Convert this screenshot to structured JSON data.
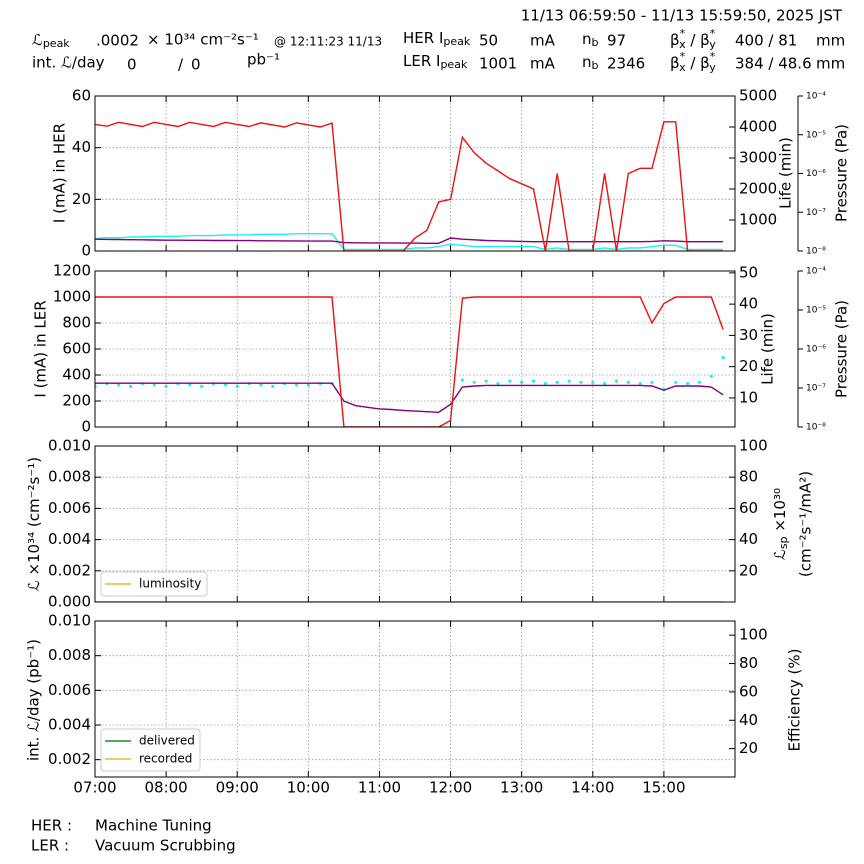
{
  "header": {
    "time_range": "11/13 06:59:50 - 11/13 15:59:50, 2025 JST",
    "lum_peak": {
      "label": [
        "ℒ",
        "peak"
      ],
      "value": ".0002",
      "unit": "× 10³⁴ cm⁻²s⁻¹",
      "time": "@ 12:11:23 11/13"
    },
    "int_lum": {
      "label": "int. ℒ/day",
      "delivered": "0",
      "sep": "/",
      "recorded": "0",
      "unit": "pb⁻¹"
    },
    "her": {
      "label": [
        "HER I",
        "peak"
      ],
      "current": "50",
      "unit": "mA",
      "nb_label": [
        "n",
        "b"
      ],
      "nb": "97",
      "beta_label": [
        "β",
        "*",
        "x",
        " / β",
        "*",
        "y"
      ],
      "beta": "400  / 81",
      "beta_unit": "mm"
    },
    "ler": {
      "label": [
        "LER I",
        "peak"
      ],
      "current": "1001",
      "unit": "mA",
      "nb_label": [
        "n",
        "b"
      ],
      "nb": "2346",
      "beta_label": [
        "β",
        "*",
        "x",
        " / β",
        "*",
        "y"
      ],
      "beta": "384 / 48.6",
      "beta_unit": "mm"
    }
  },
  "footer": {
    "her_label": "HER :",
    "her_mode": "Machine Tuning",
    "ler_label": "LER :",
    "ler_mode": "Vacuum Scrubbing"
  },
  "chart_data": [
    {
      "type": "line",
      "ylabel": "I (mA) in HER",
      "y2label": "Life (min)",
      "y3label": "Pressure (Pa)",
      "grid": true,
      "x": [
        "07:00",
        "07:10",
        "07:20",
        "07:30",
        "07:40",
        "07:50",
        "08:00",
        "08:10",
        "08:20",
        "08:30",
        "08:40",
        "08:50",
        "09:00",
        "09:10",
        "09:20",
        "09:30",
        "09:40",
        "09:50",
        "10:00",
        "10:10",
        "10:20",
        "10:30",
        "10:40",
        "10:50",
        "11:00",
        "11:10",
        "11:20",
        "11:30",
        "11:40",
        "11:50",
        "12:00",
        "12:10",
        "12:20",
        "12:30",
        "12:40",
        "12:50",
        "13:00",
        "13:10",
        "13:20",
        "13:30",
        "13:40",
        "13:50",
        "14:00",
        "14:10",
        "14:20",
        "14:30",
        "14:40",
        "14:50",
        "15:00",
        "15:10",
        "15:20",
        "15:30",
        "15:40",
        "15:50"
      ],
      "xlim": [
        "07:00",
        "16:00"
      ],
      "ylim": [
        0,
        60
      ],
      "yticks": [
        0,
        20,
        40,
        60
      ],
      "y2lim": [
        0,
        5000
      ],
      "y2ticks": [
        1000,
        2000,
        3000,
        4000,
        5000
      ],
      "y3lim": [
        1e-08,
        0.0001
      ],
      "y3log": true,
      "y3ticks": [
        {
          "value": 1e-08,
          "label": "10⁻⁸"
        },
        {
          "value": 1e-07,
          "label": "10⁻⁷"
        },
        {
          "value": 1e-06,
          "label": "10⁻⁶"
        },
        {
          "value": 1e-05,
          "label": "10⁻⁵"
        },
        {
          "value": 0.0001,
          "label": "10⁻⁴"
        }
      ],
      "series": [
        {
          "color": "#22eeee",
          "axis": "y3",
          "values": [
            2.1e-08,
            2.2e-08,
            2.2e-08,
            2.3e-08,
            2.3e-08,
            2.4e-08,
            2.4e-08,
            2.4e-08,
            2.5e-08,
            2.5e-08,
            2.5e-08,
            2.6e-08,
            2.6e-08,
            2.6e-08,
            2.7e-08,
            2.7e-08,
            2.7e-08,
            2.8e-08,
            2.8e-08,
            2.8e-08,
            2.8e-08,
            1.1e-08,
            1.1e-08,
            1.1e-08,
            1.1e-08,
            1.1e-08,
            1.1e-08,
            1.2e-08,
            1.2e-08,
            1.3e-08,
            1.5e-08,
            1.4e-08,
            1.3e-08,
            1.3e-08,
            1.3e-08,
            1.3e-08,
            1.3e-08,
            1.3e-08,
            1.1e-08,
            1.2e-08,
            1.1e-08,
            1.1e-08,
            1.1e-08,
            1.2e-08,
            1.1e-08,
            1.2e-08,
            1.2e-08,
            1.3e-08,
            1.4e-08,
            1.4e-08,
            1.1e-08,
            1.1e-08,
            1.1e-08,
            1.1e-08
          ]
        },
        {
          "color": "#800080",
          "axis": "y2",
          "values": [
            380,
            375,
            370,
            365,
            360,
            355,
            350,
            350,
            345,
            345,
            340,
            340,
            335,
            335,
            330,
            330,
            325,
            325,
            320,
            320,
            320,
            270,
            265,
            260,
            260,
            260,
            255,
            255,
            250,
            250,
            420,
            380,
            360,
            340,
            330,
            320,
            310,
            300,
            300,
            300,
            300,
            300,
            300,
            300,
            300,
            300,
            300,
            310,
            330,
            320,
            300,
            300,
            300,
            300
          ]
        },
        {
          "color": "#ee1111",
          "values": [
            49,
            48.3,
            49.8,
            49,
            48.2,
            49.8,
            49,
            48.2,
            49.8,
            49,
            48.2,
            49.8,
            49,
            48.2,
            49.6,
            48.8,
            48,
            49.6,
            48.8,
            48,
            49.5,
            0,
            0,
            0,
            0,
            0,
            0,
            5,
            8,
            19,
            20,
            44,
            38,
            34,
            31,
            28,
            26,
            24,
            0,
            30,
            0,
            0,
            0,
            30,
            0,
            30,
            32,
            32,
            50,
            50,
            0,
            0,
            0,
            0
          ]
        }
      ]
    },
    {
      "type": "line",
      "ylabel": "I (mA) in LER",
      "y2label": "Life (min)",
      "y3label": "Pressure (Pa)",
      "grid": true,
      "x": [
        "07:00",
        "07:10",
        "07:20",
        "07:30",
        "07:40",
        "07:50",
        "08:00",
        "08:10",
        "08:20",
        "08:30",
        "08:40",
        "08:50",
        "09:00",
        "09:10",
        "09:20",
        "09:30",
        "09:40",
        "09:50",
        "10:00",
        "10:10",
        "10:20",
        "10:30",
        "10:40",
        "10:50",
        "11:00",
        "11:10",
        "11:20",
        "11:30",
        "11:40",
        "11:50",
        "12:00",
        "12:10",
        "12:20",
        "12:30",
        "12:40",
        "12:50",
        "13:00",
        "13:10",
        "13:20",
        "13:30",
        "13:40",
        "13:50",
        "14:00",
        "14:10",
        "14:20",
        "14:30",
        "14:40",
        "14:50",
        "15:00",
        "15:10",
        "15:20",
        "15:30",
        "15:40",
        "15:50"
      ],
      "xlim": [
        "07:00",
        "16:00"
      ],
      "ylim": [
        0,
        1200
      ],
      "yticks": [
        0,
        200,
        400,
        600,
        800,
        1000,
        1200
      ],
      "y2lim": [
        0.7,
        50.6
      ],
      "y2ticks": [
        10,
        20,
        30,
        40,
        50
      ],
      "y3lim": [
        1e-08,
        0.0001
      ],
      "y3log": true,
      "y3ticks": [
        {
          "value": 1e-08,
          "label": "10⁻⁸"
        },
        {
          "value": 1e-07,
          "label": "10⁻⁷"
        },
        {
          "value": 1e-06,
          "label": "10⁻⁶"
        },
        {
          "value": 1e-05,
          "label": "10⁻⁵"
        },
        {
          "value": 0.0001,
          "label": "10⁻⁴"
        }
      ],
      "series": [
        {
          "color": "#22eeee",
          "axis": "y3",
          "style": "scatter",
          "values": [
            1.1e-07,
            1.3e-07,
            1.2e-07,
            1.1e-07,
            1.3e-07,
            1.2e-07,
            1.1e-07,
            1.3e-07,
            1.2e-07,
            1.1e-07,
            1.3e-07,
            1.2e-07,
            1.1e-07,
            1.3e-07,
            1.2e-07,
            1.1e-07,
            1.3e-07,
            1.2e-07,
            1.2e-07,
            1.3e-07,
            1.3e-07,
            null,
            null,
            null,
            null,
            null,
            null,
            null,
            null,
            null,
            null,
            1.6e-07,
            1.4e-07,
            1.5e-07,
            1.3e-07,
            1.5e-07,
            1.4e-07,
            1.5e-07,
            1.3e-07,
            1.4e-07,
            1.5e-07,
            1.4e-07,
            1.4e-07,
            1.3e-07,
            1.5e-07,
            1.4e-07,
            1.3e-07,
            1.4e-07,
            9e-08,
            1.4e-07,
            1.3e-07,
            1.4e-07,
            2e-07,
            6e-07
          ]
        },
        {
          "color": "#800080",
          "axis": "y2",
          "values": [
            14.7,
            14.7,
            14.7,
            14.7,
            14.7,
            14.7,
            14.7,
            14.7,
            14.7,
            14.7,
            14.7,
            14.7,
            14.7,
            14.7,
            14.7,
            14.7,
            14.7,
            14.7,
            14.7,
            14.7,
            14.7,
            9,
            7.5,
            7,
            6.5,
            6.3,
            6,
            5.8,
            5.6,
            5.4,
            8,
            13.5,
            13.8,
            14,
            14,
            14,
            14,
            14,
            14,
            14,
            14,
            14,
            14,
            14,
            14,
            14,
            14,
            13.8,
            12.5,
            13.8,
            13.8,
            13.8,
            13.5,
            11
          ]
        },
        {
          "color": "#ee1111",
          "values": [
            1000,
            1000,
            1000,
            1000,
            1000,
            1000,
            1000,
            1000,
            1000,
            1000,
            1000,
            1000,
            1000,
            1000,
            1000,
            1000,
            1000,
            1000,
            1000,
            1000,
            1000,
            0,
            0,
            0,
            0,
            0,
            0,
            0,
            0,
            0,
            50,
            990,
            1000,
            1000,
            1000,
            1000,
            1000,
            1000,
            1000,
            1000,
            1000,
            1000,
            1000,
            1000,
            1000,
            1000,
            1000,
            800,
            950,
            1000,
            1000,
            1000,
            1000,
            750
          ]
        }
      ]
    },
    {
      "type": "line",
      "ylabel": [
        "ℒ ×10³⁴ (cm⁻²s⁻¹)"
      ],
      "y2label": [
        "ℒ",
        "sp",
        " ×10³⁰"
      ],
      "y2label2": "(cm⁻²s⁻¹/mA²)",
      "grid": true,
      "legend": "lower left",
      "x": [
        "07:00",
        "07:10",
        "07:20",
        "07:30",
        "07:40",
        "07:50",
        "08:00",
        "08:10",
        "08:20",
        "08:30",
        "08:40",
        "08:50",
        "09:00",
        "09:10",
        "09:20",
        "09:30",
        "09:40",
        "09:50",
        "10:00",
        "10:10",
        "10:20",
        "10:30",
        "10:40",
        "10:50",
        "11:00",
        "11:10",
        "11:20",
        "11:30",
        "11:40",
        "11:50",
        "12:00",
        "12:10",
        "12:20",
        "12:30",
        "12:40",
        "12:50",
        "13:00",
        "13:10",
        "13:20",
        "13:30",
        "13:40",
        "13:50",
        "14:00",
        "14:10",
        "14:20",
        "14:30",
        "14:40",
        "14:50",
        "15:00",
        "15:10",
        "15:20",
        "15:30",
        "15:40",
        "15:50"
      ],
      "xlim": [
        "07:00",
        "16:00"
      ],
      "ylim": [
        0,
        0.01
      ],
      "yticks": [
        {
          "value": 0,
          "label": "0.000"
        },
        {
          "value": 0.002,
          "label": "0.002"
        },
        {
          "value": 0.004,
          "label": "0.004"
        },
        {
          "value": 0.006,
          "label": "0.006"
        },
        {
          "value": 0.008,
          "label": "0.008"
        },
        {
          "value": 0.01,
          "label": "0.010"
        }
      ],
      "y2lim": [
        0,
        100
      ],
      "y2ticks": [
        20,
        40,
        60,
        80,
        100
      ],
      "series": [
        {
          "name": "luminosity",
          "color": "#f5b335",
          "values": [
            0,
            0,
            0,
            0,
            0,
            0,
            0,
            0,
            0,
            0,
            0,
            0,
            0,
            0,
            0,
            0,
            0,
            0,
            0,
            0,
            0,
            0,
            0,
            0,
            0,
            0,
            0,
            0,
            0,
            0,
            0,
            0,
            0,
            0,
            0,
            0,
            0,
            0,
            0,
            0,
            0,
            0,
            0,
            0,
            0,
            0,
            0,
            0,
            0,
            0,
            0,
            0,
            0,
            0
          ]
        }
      ]
    },
    {
      "type": "line",
      "ylabel": "int. ℒ/day (pb⁻¹)",
      "y2label": "Efficiency (%)",
      "grid": true,
      "legend": "lower left",
      "x": [
        "07:00",
        "07:10",
        "07:20",
        "07:30",
        "07:40",
        "07:50",
        "08:00",
        "08:10",
        "08:20",
        "08:30",
        "08:40",
        "08:50",
        "09:00",
        "09:10",
        "09:20",
        "09:30",
        "09:40",
        "09:50",
        "10:00",
        "10:10",
        "10:20",
        "10:30",
        "10:40",
        "10:50",
        "11:00",
        "11:10",
        "11:20",
        "11:30",
        "11:40",
        "11:50",
        "12:00",
        "12:10",
        "12:20",
        "12:30",
        "12:40",
        "12:50",
        "13:00",
        "13:10",
        "13:20",
        "13:30",
        "13:40",
        "13:50",
        "14:00",
        "14:10",
        "14:20",
        "14:30",
        "14:40",
        "14:50",
        "15:00",
        "15:10",
        "15:20",
        "15:30",
        "15:40",
        "15:50"
      ],
      "xlim": [
        "07:00",
        "16:00"
      ],
      "xticks": [
        "07:00",
        "08:00",
        "09:00",
        "10:00",
        "11:00",
        "12:00",
        "13:00",
        "14:00",
        "15:00"
      ],
      "ylim": [
        0.001,
        0.01
      ],
      "yticks": [
        {
          "value": 0.002,
          "label": "0.002"
        },
        {
          "value": 0.004,
          "label": "0.004"
        },
        {
          "value": 0.006,
          "label": "0.006"
        },
        {
          "value": 0.008,
          "label": "0.008"
        },
        {
          "value": 0.01,
          "label": "0.010"
        }
      ],
      "y2lim": [
        0,
        110
      ],
      "y2ticks": [
        20,
        40,
        60,
        80,
        100
      ],
      "series": [
        {
          "name": "delivered",
          "color": "#1f8a1f",
          "values": [
            0,
            0,
            0,
            0,
            0,
            0,
            0,
            0,
            0,
            0,
            0,
            0,
            0,
            0,
            0,
            0,
            0,
            0,
            0,
            0,
            0,
            0,
            0,
            0,
            0,
            0,
            0,
            0,
            0,
            0,
            0,
            0,
            0,
            0,
            0,
            0,
            0,
            0,
            0,
            0,
            0,
            0,
            0,
            0,
            0,
            0,
            0,
            0,
            0,
            0,
            0,
            0,
            0,
            0
          ]
        },
        {
          "name": "recorded",
          "color": "#f5b335",
          "values": [
            0,
            0,
            0,
            0,
            0,
            0,
            0,
            0,
            0,
            0,
            0,
            0,
            0,
            0,
            0,
            0,
            0,
            0,
            0,
            0,
            0,
            0,
            0,
            0,
            0,
            0,
            0,
            0,
            0,
            0,
            0,
            0,
            0,
            0,
            0,
            0,
            0,
            0,
            0,
            0,
            0,
            0,
            0,
            0,
            0,
            0,
            0,
            0,
            0,
            0,
            0,
            0,
            0,
            0
          ]
        }
      ]
    }
  ]
}
